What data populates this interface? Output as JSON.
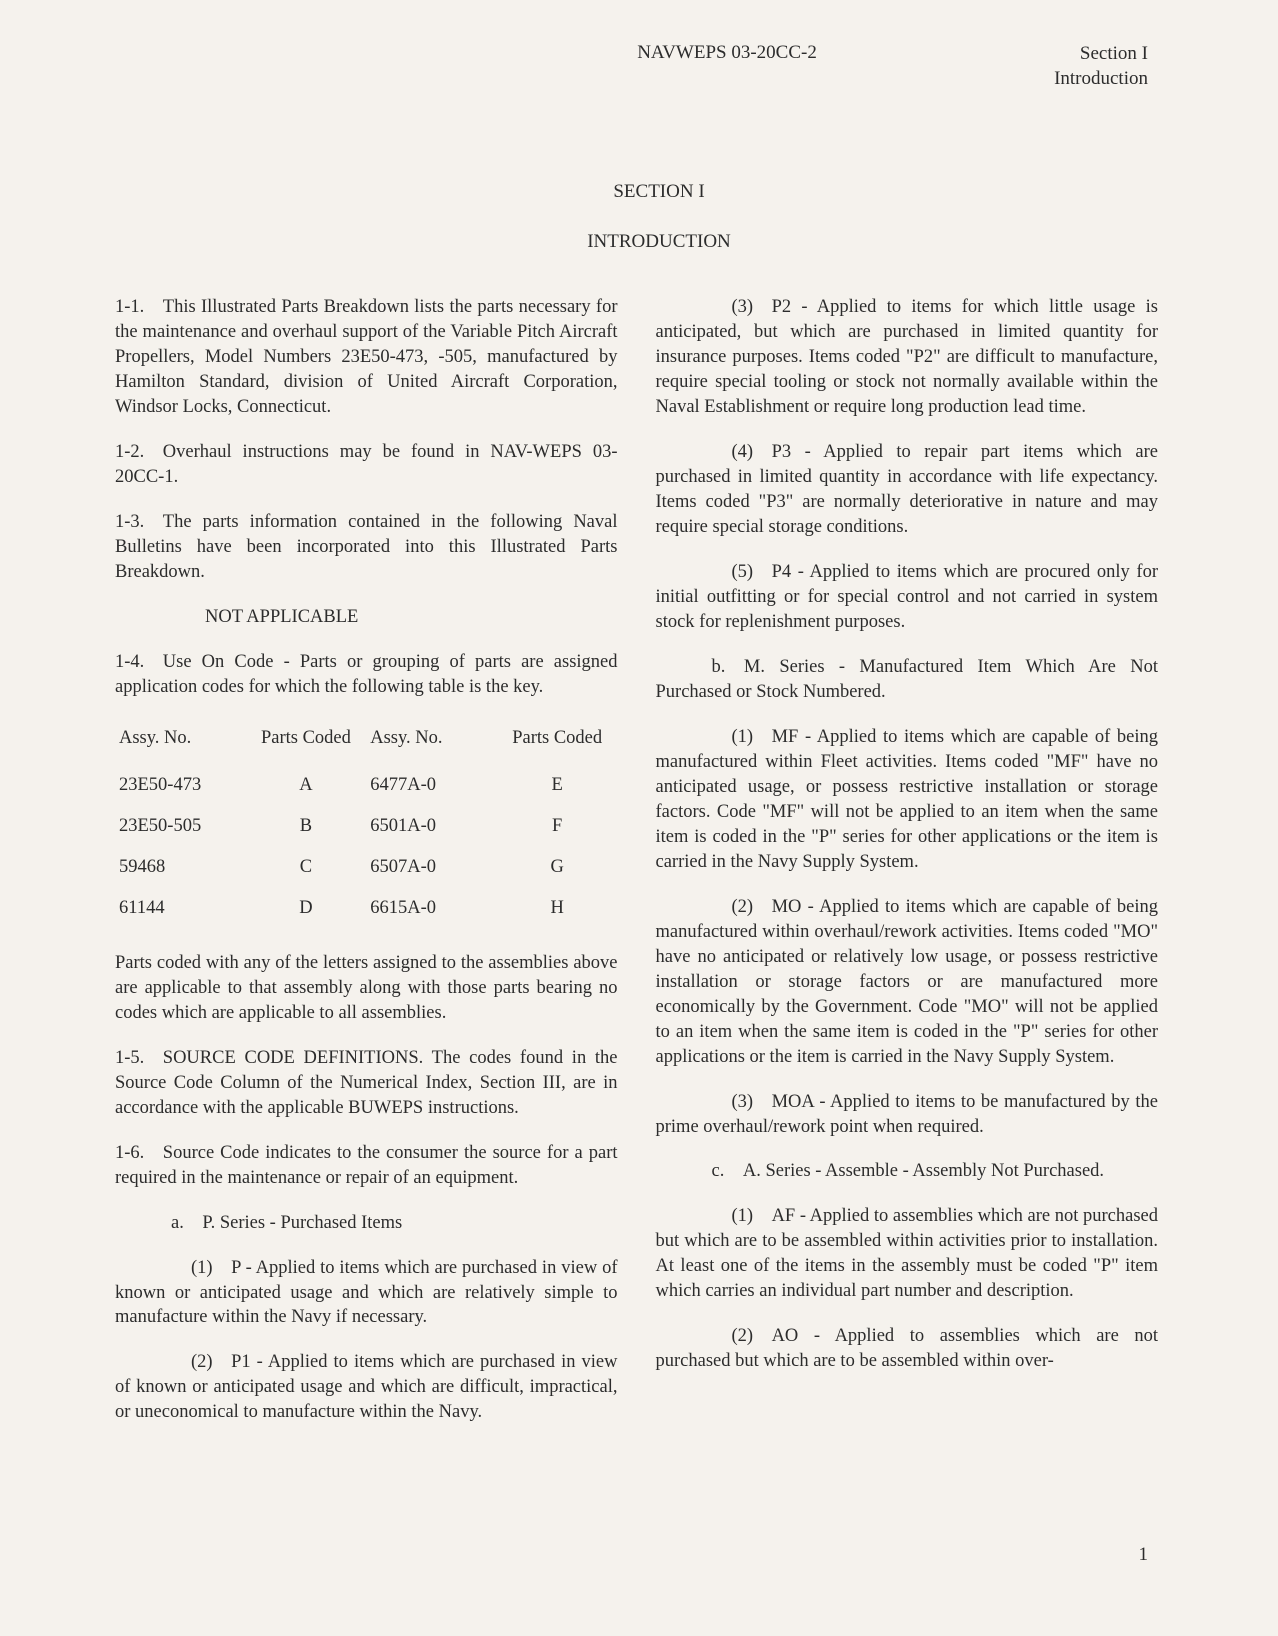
{
  "header": {
    "doc_number": "NAVWEPS 03-20CC-2",
    "section_label": "Section I",
    "subsection_label": "Introduction"
  },
  "section_title": "SECTION I",
  "section_subtitle": "INTRODUCTION",
  "left_column": {
    "para_1_1": "1-1. This Illustrated Parts Breakdown lists the parts necessary for the maintenance and overhaul support of the Variable Pitch Aircraft Propellers, Model Numbers 23E50-473, -505, manufactured by Hamilton Standard, division of United Aircraft Corporation, Windsor Locks, Connecticut.",
    "para_1_2": "1-2. Overhaul instructions may be found in NAV-WEPS 03-20CC-1.",
    "para_1_3": "1-3. The parts information contained in the following Naval Bulletins have been incorporated into this Illustrated Parts Breakdown.",
    "not_applicable": "NOT APPLICABLE",
    "para_1_4": "1-4. Use On Code - Parts or grouping of parts are assigned application codes for which the following table is the key.",
    "code_table": {
      "headers": [
        "Assy. No.",
        "Parts Coded",
        "Assy. No.",
        "Parts Coded"
      ],
      "rows": [
        [
          "23E50-473",
          "A",
          "6477A-0",
          "E"
        ],
        [
          "23E50-505",
          "B",
          "6501A-0",
          "F"
        ],
        [
          "59468",
          "C",
          "6507A-0",
          "G"
        ],
        [
          "61144",
          "D",
          "6615A-0",
          "H"
        ]
      ]
    },
    "para_after_table": "Parts coded with any of the letters assigned to the assemblies above are applicable to that assembly along with those parts bearing no codes which are applicable to all assemblies.",
    "para_1_5": "1-5. SOURCE CODE DEFINITIONS. The codes found in the Source Code Column of the Numerical Index, Section III, are in accordance with the applicable BUWEPS instructions.",
    "para_1_6": "1-6. Source Code indicates to the consumer the source for a part required in the maintenance or repair of an equipment.",
    "item_a": "a. P. Series - Purchased Items",
    "item_a_1": "(1) P - Applied to items which are purchased in view of known or anticipated usage and which are relatively simple to manufacture within the Navy if necessary.",
    "item_a_2": "(2) P1 - Applied to items which are purchased in view of known or anticipated usage and which are difficult, impractical, or uneconomical to manufacture within the Navy."
  },
  "right_column": {
    "item_a_3": "(3) P2 - Applied to items for which little usage is anticipated, but which are purchased in limited quantity for insurance purposes. Items coded \"P2\" are difficult to manufacture, require special tooling or stock not normally available within the Naval Establishment or require long production lead time.",
    "item_a_4": "(4) P3 - Applied to repair part items which are purchased in limited quantity in accordance with life expectancy. Items coded \"P3\" are normally deteriorative in nature and may require special storage conditions.",
    "item_a_5": "(5) P4 - Applied to items which are procured only for initial outfitting or for special control and not carried in system stock for replenishment purposes.",
    "item_b": "b. M. Series - Manufactured Item Which Are Not Purchased or Stock Numbered.",
    "item_b_1": "(1) MF - Applied to items which are capable of being manufactured within Fleet activities. Items coded \"MF\" have no anticipated usage, or possess restrictive installation or storage factors. Code \"MF\" will not be applied to an item when the same item is coded in the \"P\" series for other applications or the item is carried in the Navy Supply System.",
    "item_b_2": "(2) MO - Applied to items which are capable of being manufactured within overhaul/rework activities. Items coded \"MO\" have no anticipated or relatively low usage, or possess restrictive installation or storage factors or are manufactured more economically by the Government. Code \"MO\" will not be applied to an item when the same item is coded in the \"P\" series for other applications or the item is carried in the Navy Supply System.",
    "item_b_3": "(3) MOA - Applied to items to be manufactured by the prime overhaul/rework point when required.",
    "item_c": "c. A. Series - Assemble - Assembly Not Purchased.",
    "item_c_1": "(1) AF - Applied to assemblies which are not purchased but which are to be assembled within activities prior to installation. At least one of the items in the assembly must be coded \"P\" item which carries an individual part number and description.",
    "item_c_2": "(2) AO - Applied to assemblies which are not purchased but which are to be assembled within over-"
  },
  "page_number": "1"
}
